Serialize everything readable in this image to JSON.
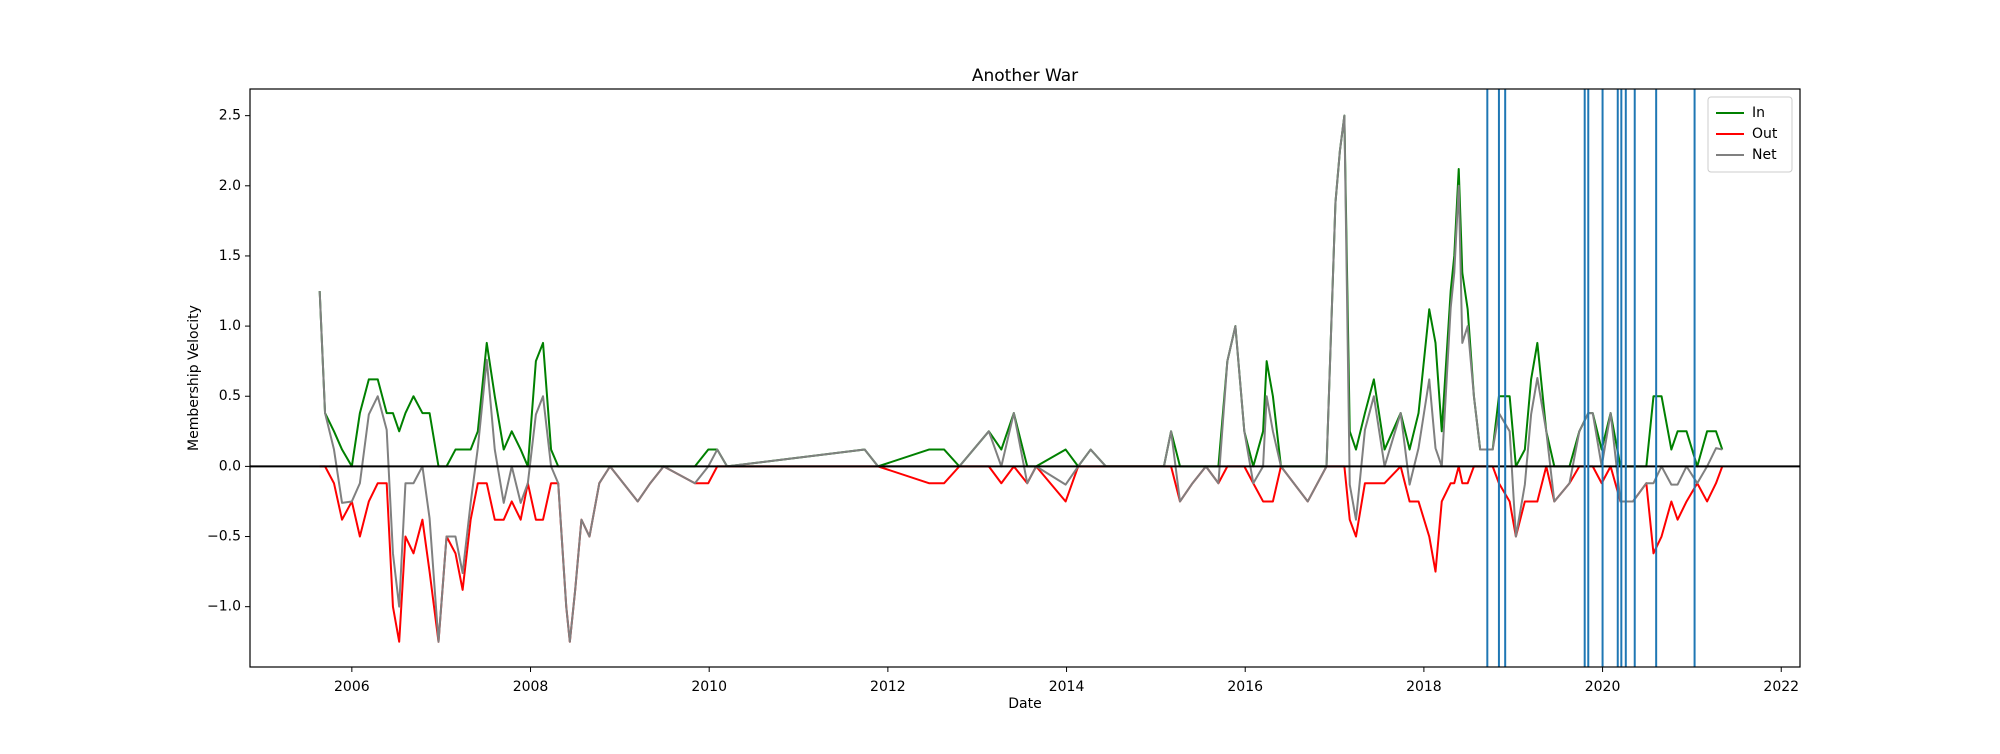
{
  "chart_data": {
    "type": "line",
    "title": "Another War",
    "x_label": "Date",
    "y_label": "Membership Velocity",
    "xlim": [
      2004.86,
      2022.21
    ],
    "ylim": [
      -1.43,
      2.69
    ],
    "xticks": [
      2006,
      2008,
      2010,
      2012,
      2014,
      2016,
      2018,
      2020,
      2022
    ],
    "yticks": [
      {
        "value": -1.0,
        "label": "−1.0"
      },
      {
        "value": -0.5,
        "label": "−0.5"
      },
      {
        "value": 0,
        "label": "0.0"
      },
      {
        "value": 0.5,
        "label": "0.5"
      },
      {
        "value": 1.0,
        "label": "1.0"
      },
      {
        "value": 1.5,
        "label": "1.5"
      },
      {
        "value": 2.0,
        "label": "2.0"
      },
      {
        "value": 2.5,
        "label": "2.5"
      }
    ],
    "legend": "upper right",
    "hlines": [
      0
    ],
    "hline_color": "#000000",
    "vlines": [
      2018.71,
      2018.84,
      2018.91,
      2019.8,
      2019.84,
      2020.0,
      2020.17,
      2020.21,
      2020.26,
      2020.36,
      2020.6,
      2021.03
    ],
    "vline_color": "#1f77b4",
    "x": [
      2005.64,
      2005.7,
      2005.8,
      2005.89,
      2006.0,
      2006.09,
      2006.19,
      2006.29,
      2006.39,
      2006.46,
      2006.53,
      2006.6,
      2006.69,
      2006.79,
      2006.87,
      2006.97,
      2007.06,
      2007.16,
      2007.24,
      2007.33,
      2007.41,
      2007.51,
      2007.6,
      2007.7,
      2007.79,
      2007.89,
      2007.97,
      2008.06,
      2008.14,
      2008.23,
      2008.31,
      2008.4,
      2008.44,
      2008.5,
      2008.57,
      2008.66,
      2008.77,
      2008.89,
      2009.2,
      2009.34,
      2009.49,
      2009.84,
      2009.99,
      2010.09,
      2010.2,
      2011.74,
      2011.89,
      2012.46,
      2012.63,
      2012.8,
      2013.13,
      2013.27,
      2013.41,
      2013.56,
      2013.66,
      2013.99,
      2014.13,
      2014.27,
      2014.44,
      2015.09,
      2015.17,
      2015.27,
      2015.41,
      2015.56,
      2015.7,
      2015.8,
      2015.89,
      2015.99,
      2016.09,
      2016.2,
      2016.24,
      2016.31,
      2016.4,
      2016.7,
      2016.91,
      2017.01,
      2017.06,
      2017.11,
      2017.17,
      2017.24,
      2017.34,
      2017.44,
      2017.56,
      2017.74,
      2017.84,
      2017.94,
      2018.06,
      2018.13,
      2018.2,
      2018.3,
      2018.34,
      2018.39,
      2018.43,
      2018.49,
      2018.56,
      2018.63,
      2018.77,
      2018.84,
      2018.96,
      2019.03,
      2019.13,
      2019.2,
      2019.27,
      2019.37,
      2019.46,
      2019.63,
      2019.74,
      2019.84,
      2019.89,
      2019.99,
      2020.09,
      2020.2,
      2020.34,
      2020.49,
      2020.57,
      2020.66,
      2020.77,
      2020.84,
      2020.94,
      2021.06,
      2021.17,
      2021.27,
      2021.34
    ],
    "series": [
      {
        "name": "In",
        "color": "#008000",
        "values": [
          1.25,
          0.38,
          0.25,
          0.12,
          0,
          0.38,
          0.62,
          0.62,
          0.38,
          0.38,
          0.25,
          0.38,
          0.5,
          0.38,
          0.38,
          0,
          0,
          0.12,
          0.12,
          0.12,
          0.25,
          0.88,
          0.5,
          0.12,
          0.25,
          0.12,
          0,
          0.75,
          0.88,
          0.12,
          0,
          0,
          0,
          0,
          0,
          0,
          0,
          0,
          0,
          0,
          0,
          0,
          0.12,
          0.12,
          0,
          0.12,
          0,
          0.12,
          0.12,
          0,
          0.25,
          0.12,
          0.38,
          0,
          0,
          0.12,
          0,
          0.12,
          0,
          0,
          0.25,
          0,
          0,
          0,
          0,
          0.75,
          1.0,
          0.25,
          0,
          0.25,
          0.75,
          0.5,
          0,
          0,
          0,
          1.88,
          2.25,
          2.5,
          0.25,
          0.12,
          0.38,
          0.62,
          0.12,
          0.38,
          0.12,
          0.38,
          1.12,
          0.88,
          0.25,
          1.25,
          1.5,
          2.12,
          1.38,
          1.12,
          0.5,
          0.12,
          0.12,
          0.5,
          0.5,
          0,
          0.12,
          0.62,
          0.88,
          0.25,
          0,
          0,
          0.25,
          0.38,
          0.38,
          0.12,
          0.38,
          0,
          0,
          0,
          0.5,
          0.5,
          0.12,
          0.25,
          0.25,
          0,
          0.25,
          0.25,
          0.12
        ]
      },
      {
        "name": "Out",
        "color": "#ff0000",
        "values": [
          0,
          0,
          -0.12,
          -0.38,
          -0.25,
          -0.5,
          -0.25,
          -0.12,
          -0.12,
          -1.0,
          -1.25,
          -0.5,
          -0.62,
          -0.38,
          -0.75,
          -1.25,
          -0.5,
          -0.62,
          -0.88,
          -0.38,
          -0.12,
          -0.12,
          -0.38,
          -0.38,
          -0.25,
          -0.38,
          -0.12,
          -0.38,
          -0.38,
          -0.12,
          -0.12,
          -1.0,
          -1.25,
          -0.88,
          -0.38,
          -0.5,
          -0.12,
          0,
          -0.25,
          -0.12,
          0,
          -0.12,
          -0.12,
          0,
          0,
          0,
          0,
          -0.12,
          -0.12,
          0,
          0,
          -0.12,
          0,
          -0.12,
          0,
          -0.25,
          0,
          0,
          0,
          0,
          0,
          -0.25,
          -0.12,
          0,
          -0.12,
          0,
          0,
          0,
          -0.12,
          -0.25,
          -0.25,
          -0.25,
          0,
          -0.25,
          0,
          0,
          0,
          0,
          -0.38,
          -0.5,
          -0.12,
          -0.12,
          -0.12,
          0,
          -0.25,
          -0.25,
          -0.5,
          -0.75,
          -0.25,
          -0.12,
          -0.12,
          0,
          -0.12,
          -0.12,
          0,
          0,
          0,
          -0.12,
          -0.25,
          -0.5,
          -0.25,
          -0.25,
          -0.25,
          0,
          -0.25,
          -0.12,
          0,
          0,
          0,
          -0.12,
          0,
          -0.25,
          -0.25,
          -0.12,
          -0.62,
          -0.5,
          -0.25,
          -0.38,
          -0.25,
          -0.12,
          -0.25,
          -0.12,
          0
        ]
      },
      {
        "name": "Net",
        "color": "#808080",
        "values": [
          1.25,
          0.38,
          0.12,
          -0.26,
          -0.25,
          -0.12,
          0.37,
          0.5,
          0.26,
          -0.62,
          -1.0,
          -0.12,
          -0.12,
          0,
          -0.37,
          -1.25,
          -0.5,
          -0.5,
          -0.76,
          -0.26,
          0.13,
          0.76,
          0.12,
          -0.26,
          0,
          -0.26,
          -0.12,
          0.37,
          0.5,
          0,
          -0.12,
          -1.0,
          -1.25,
          -0.88,
          -0.38,
          -0.5,
          -0.12,
          0,
          -0.25,
          -0.12,
          0,
          -0.12,
          0,
          0.12,
          0,
          0.12,
          0,
          0,
          0,
          0,
          0.25,
          0,
          0.38,
          -0.12,
          0,
          -0.13,
          0,
          0.12,
          0,
          0,
          0.25,
          -0.25,
          -0.12,
          0,
          -0.12,
          0.75,
          1.0,
          0.25,
          -0.12,
          0,
          0.5,
          0.25,
          0,
          -0.25,
          0,
          1.88,
          2.25,
          2.5,
          -0.13,
          -0.38,
          0.26,
          0.5,
          0,
          0.38,
          -0.13,
          0.13,
          0.62,
          0.13,
          0,
          1.13,
          1.38,
          2.0,
          0.88,
          1.0,
          0.5,
          0.12,
          0.12,
          0.38,
          0.25,
          -0.5,
          -0.13,
          0.37,
          0.63,
          0.25,
          -0.25,
          -0.12,
          0.25,
          0.38,
          0.38,
          0,
          0.38,
          -0.25,
          -0.25,
          -0.12,
          -0.12,
          0,
          -0.13,
          -0.13,
          0,
          -0.12,
          0,
          0.13,
          0.12
        ]
      }
    ]
  }
}
